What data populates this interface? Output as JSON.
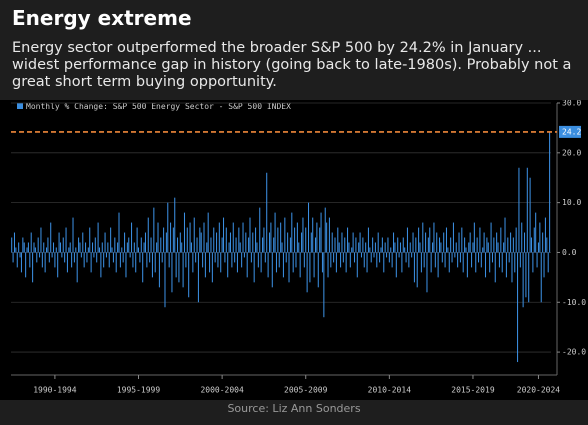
{
  "chart_data": {
    "type": "bar",
    "title": "Energy extreme",
    "subtitle": "Energy sector outperformed the broader S&P 500 by 24.2% in January ... widest performance gap in history (going back to late-1980s). Probably not a great short term buying opportunity.",
    "legend": "Monthly % Change: S&P 500 Energy Sector - S&P 500 INDEX",
    "source": "Source: Liz Ann Sonders",
    "color": "#3b8ee0",
    "highlight": {
      "value": 24.2,
      "label": "24.2",
      "color": "#f0883a"
    },
    "ylim": [
      -24.6,
      30
    ],
    "yticks": [
      {
        "value": 30,
        "label": "30.0"
      },
      {
        "value": 20,
        "label": "20.0"
      },
      {
        "value": 10,
        "label": "10.0"
      },
      {
        "value": 0,
        "label": "0.0"
      },
      {
        "value": -10,
        "label": "-10.0"
      },
      {
        "value": -20,
        "label": "-20.0"
      }
    ],
    "xlim": [
      -0.5,
      387
    ],
    "xticks": [
      {
        "value": 31,
        "label": "1990-1994"
      },
      {
        "value": 91,
        "label": "1995-1999"
      },
      {
        "value": 151,
        "label": "2000-2004"
      },
      {
        "value": 211,
        "label": "2005-2009"
      },
      {
        "value": 271,
        "label": "2010-2014"
      },
      {
        "value": 331,
        "label": "2015-2019"
      },
      {
        "value": 378,
        "label": "2020-2024"
      }
    ],
    "grid": true,
    "values": [
      3,
      -2,
      4,
      1,
      -3,
      2,
      -1,
      -4,
      3,
      2,
      -5,
      1,
      2,
      -3,
      4,
      -6,
      2,
      1,
      -2,
      3,
      -1,
      5,
      -3,
      2,
      -4,
      1,
      3,
      -2,
      6,
      -1,
      2,
      -3,
      1,
      -5,
      4,
      2,
      -1,
      3,
      -2,
      5,
      -4,
      1,
      2,
      -3,
      7,
      -2,
      1,
      -6,
      3,
      2,
      -1,
      4,
      -3,
      2,
      -2,
      1,
      5,
      -4,
      2,
      -1,
      3,
      -2,
      6,
      1,
      -5,
      2,
      -3,
      4,
      -1,
      2,
      -3,
      5,
      1,
      -2,
      3,
      -4,
      2,
      8,
      -3,
      1,
      -2,
      4,
      -5,
      2,
      3,
      -1,
      6,
      -3,
      2,
      -4,
      5,
      1,
      -2,
      3,
      -6,
      2,
      4,
      -3,
      7,
      -2,
      3,
      -5,
      9,
      -4,
      2,
      6,
      -7,
      3,
      -2,
      5,
      -11,
      4,
      10,
      -3,
      6,
      -8,
      5,
      11,
      -5,
      3,
      -6,
      4,
      2,
      -7,
      8,
      -3,
      5,
      -9,
      6,
      2,
      -4,
      7,
      -2,
      3,
      -10,
      5,
      4,
      -3,
      6,
      -5,
      2,
      8,
      -4,
      3,
      -6,
      5,
      -2,
      4,
      -3,
      6,
      -4,
      3,
      7,
      -2,
      5,
      -5,
      2,
      4,
      -3,
      6,
      -2,
      3,
      -4,
      5,
      2,
      -3,
      6,
      -1,
      4,
      -5,
      3,
      7,
      -2,
      4,
      -6,
      5,
      2,
      -3,
      9,
      -4,
      3,
      5,
      -2,
      16,
      -5,
      4,
      6,
      -7,
      3,
      8,
      -4,
      5,
      -3,
      6,
      2,
      -5,
      7,
      -2,
      4,
      -6,
      3,
      8,
      -4,
      5,
      -3,
      6,
      2,
      -5,
      4,
      7,
      -3,
      5,
      -8,
      10,
      -6,
      4,
      7,
      -5,
      3,
      6,
      -7,
      5,
      8,
      -4,
      -13,
      9,
      6,
      -5,
      7,
      -3,
      4,
      -2,
      3,
      -4,
      5,
      2,
      -3,
      4,
      -2,
      3,
      -4,
      5,
      2,
      -3,
      1,
      4,
      -2,
      3,
      -5,
      2,
      4,
      -1,
      3,
      -3,
      2,
      -4,
      5,
      1,
      -2,
      3,
      -1,
      2,
      -3,
      4,
      -2,
      1,
      3,
      -4,
      2,
      -1,
      3,
      -2,
      1,
      -3,
      4,
      2,
      -5,
      3,
      -1,
      2,
      -4,
      3,
      1,
      -2,
      5,
      -3,
      2,
      -1,
      4,
      -6,
      3,
      -7,
      5,
      2,
      -4,
      6,
      -3,
      4,
      -8,
      3,
      5,
      -4,
      2,
      6,
      -3,
      4,
      -5,
      3,
      2,
      -2,
      4,
      -3,
      5,
      1,
      -4,
      3,
      -2,
      6,
      -1,
      2,
      -3,
      4,
      -2,
      5,
      -4,
      3,
      1,
      -5,
      2,
      4,
      -3,
      2,
      6,
      -4,
      3,
      -2,
      5,
      -3,
      1,
      4,
      -5,
      3,
      2,
      -4,
      6,
      -2,
      3,
      -6,
      4,
      2,
      -3,
      5,
      -4,
      2,
      7,
      -5,
      3,
      -2,
      4,
      -6,
      3,
      -4,
      5,
      -22,
      17,
      -3,
      6,
      -11,
      4,
      -9,
      17,
      -10,
      15,
      3,
      -4,
      5,
      8,
      -3,
      2,
      6,
      -10,
      4,
      -5,
      7,
      3,
      -4,
      24.2
    ]
  }
}
